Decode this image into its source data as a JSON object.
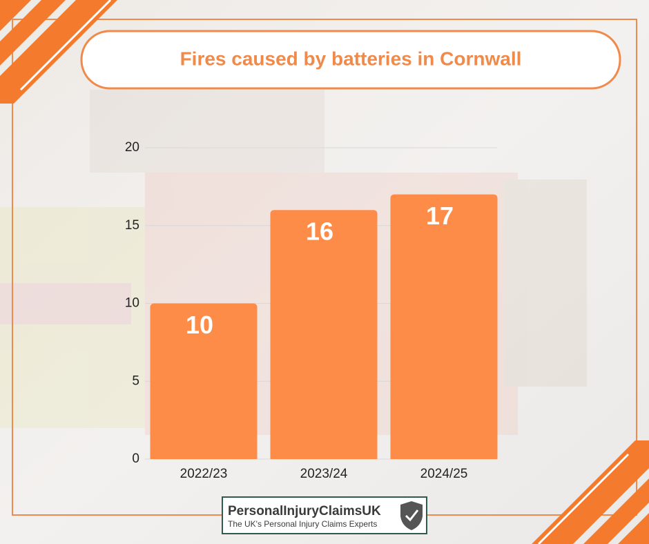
{
  "chart_data": {
    "type": "bar",
    "title": "Fires caused by batteries in Cornwall",
    "categories": [
      "2022/23",
      "2023/24",
      "2024/25"
    ],
    "values": [
      10,
      16,
      17
    ],
    "color": "#fd8c48",
    "ylim": [
      0,
      20
    ],
    "yticks": [
      0,
      5,
      10,
      15,
      20
    ],
    "grid": true
  },
  "logo": {
    "name": "PersonalInjuryClaimsUK",
    "tagline": "The UK's Personal Injury Claims Experts"
  }
}
